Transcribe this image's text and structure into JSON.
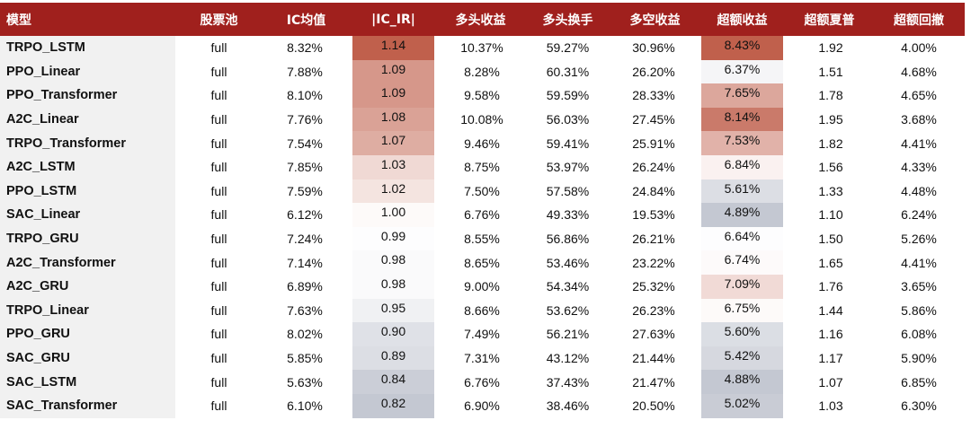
{
  "table": {
    "headers": [
      "模型",
      "股票池",
      "IC均值",
      "|IC_IR|",
      "多头收益",
      "多头换手",
      "多空收益",
      "超额收益",
      "超额夏普",
      "超额回撤"
    ],
    "rows": [
      [
        "TRPO_LSTM",
        "full",
        "8.32%",
        "1.14",
        "10.37%",
        "59.27%",
        "30.96%",
        "8.43%",
        "1.92",
        "4.00%"
      ],
      [
        "PPO_Linear",
        "full",
        "7.88%",
        "1.09",
        "8.28%",
        "60.31%",
        "26.20%",
        "6.37%",
        "1.51",
        "4.68%"
      ],
      [
        "PPO_Transformer",
        "full",
        "8.10%",
        "1.09",
        "9.58%",
        "59.59%",
        "28.33%",
        "7.65%",
        "1.78",
        "4.65%"
      ],
      [
        "A2C_Linear",
        "full",
        "7.76%",
        "1.08",
        "10.08%",
        "56.03%",
        "27.45%",
        "8.14%",
        "1.95",
        "3.68%"
      ],
      [
        "TRPO_Transformer",
        "full",
        "7.54%",
        "1.07",
        "9.46%",
        "59.41%",
        "25.91%",
        "7.53%",
        "1.82",
        "4.41%"
      ],
      [
        "A2C_LSTM",
        "full",
        "7.85%",
        "1.03",
        "8.75%",
        "53.97%",
        "26.24%",
        "6.84%",
        "1.56",
        "4.33%"
      ],
      [
        "PPO_LSTM",
        "full",
        "7.59%",
        "1.02",
        "7.50%",
        "57.58%",
        "24.84%",
        "5.61%",
        "1.33",
        "4.48%"
      ],
      [
        "SAC_Linear",
        "full",
        "6.12%",
        "1.00",
        "6.76%",
        "49.33%",
        "19.53%",
        "4.89%",
        "1.10",
        "6.24%"
      ],
      [
        "TRPO_GRU",
        "full",
        "7.24%",
        "0.99",
        "8.55%",
        "56.86%",
        "26.21%",
        "6.64%",
        "1.50",
        "5.26%"
      ],
      [
        "A2C_Transformer",
        "full",
        "7.14%",
        "0.98",
        "8.65%",
        "53.46%",
        "23.22%",
        "6.74%",
        "1.65",
        "4.41%"
      ],
      [
        "A2C_GRU",
        "full",
        "6.89%",
        "0.98",
        "9.00%",
        "54.34%",
        "25.32%",
        "7.09%",
        "1.76",
        "3.65%"
      ],
      [
        "TRPO_Linear",
        "full",
        "7.63%",
        "0.95",
        "8.66%",
        "53.62%",
        "26.23%",
        "6.75%",
        "1.44",
        "5.86%"
      ],
      [
        "PPO_GRU",
        "full",
        "8.02%",
        "0.90",
        "7.49%",
        "56.21%",
        "27.63%",
        "5.60%",
        "1.16",
        "6.08%"
      ],
      [
        "SAC_GRU",
        "full",
        "5.85%",
        "0.89",
        "7.31%",
        "43.12%",
        "21.44%",
        "5.42%",
        "1.17",
        "5.90%"
      ],
      [
        "SAC_LSTM",
        "full",
        "5.63%",
        "0.84",
        "6.76%",
        "37.43%",
        "21.47%",
        "4.88%",
        "1.07",
        "6.85%"
      ],
      [
        "SAC_Transformer",
        "full",
        "6.10%",
        "0.82",
        "6.90%",
        "38.46%",
        "20.50%",
        "5.02%",
        "1.03",
        "6.30%"
      ]
    ]
  },
  "colors": {
    "header_bg": "#a0201d",
    "header_text": "#ffffff",
    "model_col_bg": "#f1f1f1",
    "heat_high": "#c0604c",
    "heat_mid": "#ffffff",
    "heat_low": "#c4c8d2"
  }
}
